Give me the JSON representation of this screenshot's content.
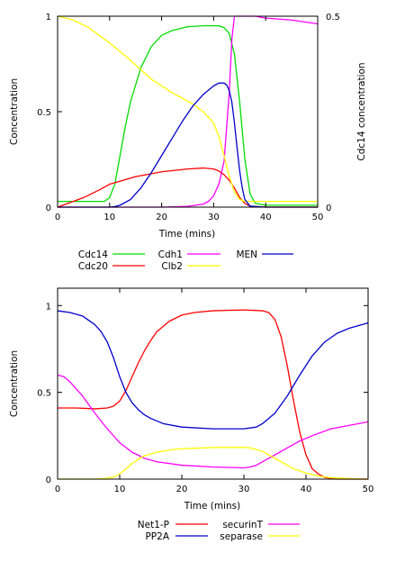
{
  "chart_data": [
    {
      "type": "line",
      "xlabel": "Time (mins)",
      "ylabel": "Concentration",
      "y2label": "Cdc14 concentration",
      "xlim": [
        0,
        50
      ],
      "ylim": [
        0,
        1
      ],
      "y2lim": [
        0,
        0.5
      ],
      "xticks": [
        "0",
        "10",
        "20",
        "30",
        "40",
        "50"
      ],
      "yticks": [
        "0",
        "0.5",
        "1"
      ],
      "y2ticks": [
        "0",
        "0.5"
      ],
      "grid": false,
      "legend_position": "below",
      "series": [
        {
          "name": "Cdc14",
          "color": "#00dd00",
          "axis": "y",
          "x": [
            0,
            5,
            8,
            9,
            10,
            11,
            12,
            13,
            14,
            16,
            18,
            20,
            22,
            25,
            28,
            31,
            32,
            33,
            34,
            35,
            36,
            37,
            38,
            40,
            50
          ],
          "y": [
            0.03,
            0.03,
            0.03,
            0.03,
            0.05,
            0.12,
            0.27,
            0.42,
            0.55,
            0.73,
            0.84,
            0.9,
            0.925,
            0.945,
            0.95,
            0.95,
            0.94,
            0.91,
            0.8,
            0.55,
            0.25,
            0.07,
            0.02,
            0.01,
            0.01
          ]
        },
        {
          "name": "Cdc20",
          "color": "#ff0000",
          "axis": "y",
          "x": [
            0,
            2,
            5,
            8,
            10,
            15,
            20,
            25,
            28,
            30,
            31,
            32,
            33,
            34,
            35,
            36,
            37,
            40,
            50
          ],
          "y": [
            0.0,
            0.02,
            0.05,
            0.09,
            0.12,
            0.16,
            0.185,
            0.2,
            0.205,
            0.2,
            0.19,
            0.17,
            0.14,
            0.1,
            0.05,
            0.02,
            0.005,
            0.0,
            0.0
          ]
        },
        {
          "name": "Cdh1",
          "color": "#ff00ff",
          "axis": "y2",
          "x": [
            0,
            20,
            25,
            28,
            29,
            30,
            31,
            32,
            33,
            33.5,
            34,
            35,
            36,
            38,
            40,
            45,
            50
          ],
          "y": [
            0.0,
            0.0,
            0.002,
            0.008,
            0.015,
            0.03,
            0.06,
            0.12,
            0.3,
            0.44,
            0.5,
            0.5,
            0.5,
            0.5,
            0.495,
            0.49,
            0.48
          ]
        },
        {
          "name": "Clb2",
          "color": "#ffff00",
          "axis": "y",
          "x": [
            0,
            3,
            6,
            10,
            14,
            18,
            22,
            26,
            28,
            30,
            31,
            32,
            33,
            34,
            35,
            36,
            38,
            40,
            50
          ],
          "y": [
            1.0,
            0.98,
            0.94,
            0.86,
            0.77,
            0.67,
            0.6,
            0.54,
            0.5,
            0.44,
            0.37,
            0.27,
            0.16,
            0.08,
            0.04,
            0.03,
            0.03,
            0.03,
            0.03
          ]
        },
        {
          "name": "MEN",
          "color": "#0000cc",
          "axis": "y",
          "x": [
            0,
            10,
            11,
            12,
            14,
            16,
            18,
            20,
            22,
            24,
            26,
            28,
            30,
            31,
            32,
            32.5,
            33,
            33.5,
            34,
            34.5,
            35,
            35.5,
            36,
            37,
            40,
            50
          ],
          "y": [
            0.0,
            0.0,
            0.003,
            0.01,
            0.04,
            0.1,
            0.18,
            0.27,
            0.36,
            0.45,
            0.53,
            0.59,
            0.635,
            0.65,
            0.65,
            0.64,
            0.61,
            0.55,
            0.44,
            0.31,
            0.19,
            0.1,
            0.04,
            0.005,
            0.0,
            0.0
          ]
        }
      ],
      "legend": [
        {
          "name": "Cdc14",
          "color": "#00dd00"
        },
        {
          "name": "Cdh1",
          "color": "#ff00ff"
        },
        {
          "name": "MEN",
          "color": "#0000cc"
        },
        {
          "name": "Cdc20",
          "color": "#ff0000"
        },
        {
          "name": "Clb2",
          "color": "#ffff00"
        }
      ]
    },
    {
      "type": "line",
      "xlabel": "Time (mins)",
      "ylabel": "Concentration",
      "xlim": [
        0,
        50
      ],
      "ylim": [
        0,
        1.1
      ],
      "xticks": [
        "0",
        "10",
        "20",
        "30",
        "40",
        "50"
      ],
      "yticks": [
        "0",
        "0.5",
        "1"
      ],
      "grid": false,
      "legend_position": "below",
      "series": [
        {
          "name": "Net1-P",
          "color": "#ff0000",
          "x": [
            0,
            3,
            6,
            8,
            9,
            10,
            11,
            12,
            13,
            14,
            15,
            16,
            18,
            20,
            22,
            25,
            30,
            33,
            34,
            35,
            36,
            37,
            38,
            39,
            40,
            41,
            42,
            43,
            45,
            50
          ],
          "y": [
            0.41,
            0.41,
            0.405,
            0.41,
            0.42,
            0.45,
            0.51,
            0.59,
            0.67,
            0.74,
            0.8,
            0.85,
            0.91,
            0.945,
            0.96,
            0.97,
            0.975,
            0.97,
            0.96,
            0.92,
            0.82,
            0.65,
            0.45,
            0.27,
            0.14,
            0.06,
            0.03,
            0.01,
            0.0,
            0.0
          ]
        },
        {
          "name": "PP2A",
          "color": "#0000cc",
          "x": [
            0,
            2,
            4,
            6,
            7,
            8,
            9,
            10,
            11,
            12,
            13,
            14,
            15,
            17,
            20,
            25,
            30,
            32,
            33,
            35,
            37,
            39,
            41,
            43,
            45,
            47,
            50
          ],
          "y": [
            0.97,
            0.96,
            0.94,
            0.89,
            0.85,
            0.79,
            0.7,
            0.59,
            0.5,
            0.44,
            0.4,
            0.37,
            0.35,
            0.32,
            0.3,
            0.29,
            0.29,
            0.3,
            0.32,
            0.38,
            0.48,
            0.6,
            0.71,
            0.79,
            0.84,
            0.87,
            0.9
          ]
        },
        {
          "name": "securinT",
          "color": "#ff00ff",
          "x": [
            0,
            1,
            2,
            4,
            6,
            8,
            10,
            12,
            14,
            16,
            20,
            25,
            30,
            31,
            32,
            33,
            35,
            37,
            39,
            41,
            44,
            47,
            50
          ],
          "y": [
            0.6,
            0.59,
            0.56,
            0.48,
            0.38,
            0.29,
            0.21,
            0.155,
            0.12,
            0.1,
            0.08,
            0.07,
            0.065,
            0.07,
            0.08,
            0.1,
            0.14,
            0.18,
            0.22,
            0.25,
            0.29,
            0.31,
            0.33
          ]
        },
        {
          "name": "separase",
          "color": "#ffff00",
          "x": [
            0,
            6,
            8,
            9,
            10,
            11,
            12,
            13,
            14,
            16,
            18,
            20,
            25,
            30,
            31,
            32,
            33,
            34,
            35,
            36,
            37,
            38,
            40,
            42,
            44,
            47,
            50
          ],
          "y": [
            0.0,
            0.0,
            0.005,
            0.012,
            0.03,
            0.06,
            0.09,
            0.115,
            0.135,
            0.155,
            0.168,
            0.175,
            0.182,
            0.183,
            0.18,
            0.17,
            0.16,
            0.14,
            0.12,
            0.1,
            0.08,
            0.06,
            0.035,
            0.018,
            0.008,
            0.003,
            0.0
          ]
        }
      ],
      "legend": [
        {
          "name": "Net1-P",
          "color": "#ff0000"
        },
        {
          "name": "securinT",
          "color": "#ff00ff"
        },
        {
          "name": "PP2A",
          "color": "#0000cc"
        },
        {
          "name": "separase",
          "color": "#ffff00"
        }
      ]
    }
  ]
}
